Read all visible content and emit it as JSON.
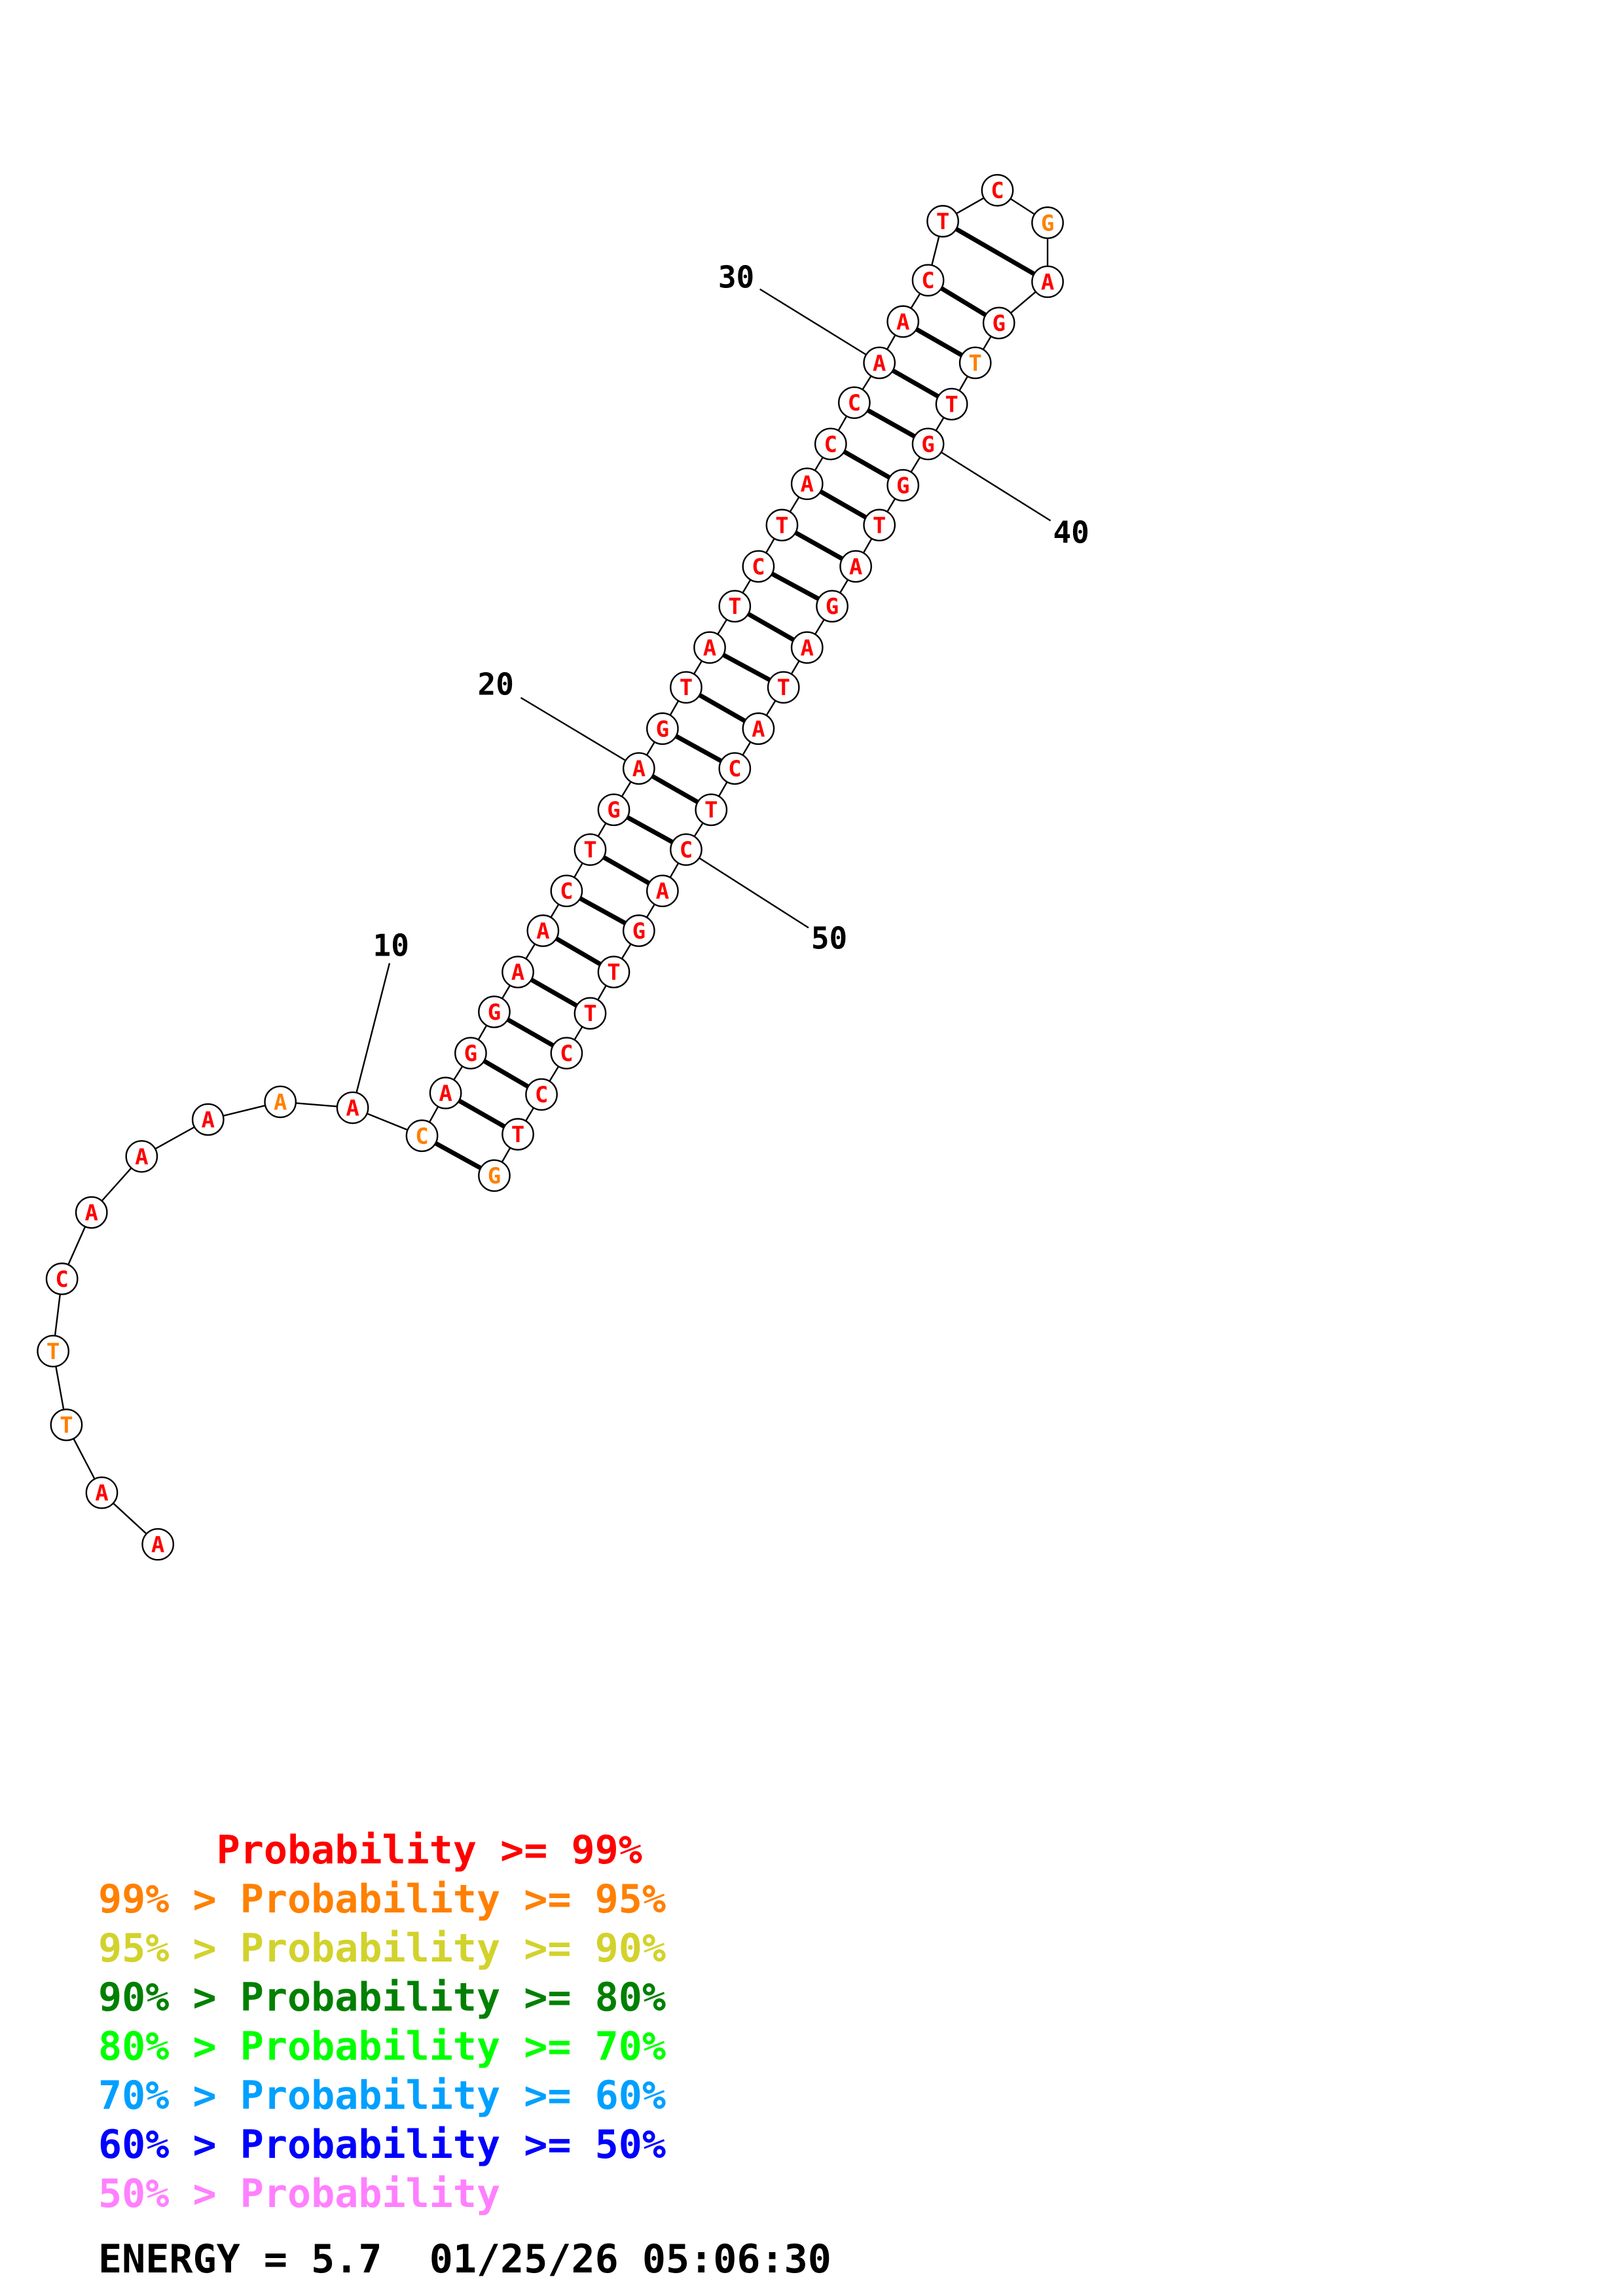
{
  "sequence": [
    "A",
    "A",
    "T",
    "T",
    "C",
    "A",
    "A",
    "A",
    "A",
    "A",
    "C",
    "A",
    "G",
    "G",
    "A",
    "A",
    "C",
    "T",
    "G",
    "A",
    "G",
    "T",
    "A",
    "T",
    "C",
    "T",
    "A",
    "C",
    "C",
    "A",
    "A",
    "C",
    "T",
    "C",
    "G",
    "A",
    "G",
    "T",
    "T",
    "G",
    "G",
    "T",
    "A",
    "G",
    "A",
    "T",
    "A",
    "C",
    "T",
    "C",
    "A",
    "G",
    "T",
    "T",
    "C",
    "C",
    "T",
    "G"
  ],
  "nucleotide_colors": {
    "red": "#ff0000",
    "orange": "#ff8000"
  },
  "orange_positions": [
    3,
    4,
    9,
    11,
    35,
    38,
    58
  ],
  "base_pairs": [
    [
      11,
      58
    ],
    [
      12,
      57
    ],
    [
      13,
      56
    ],
    [
      14,
      55
    ],
    [
      15,
      54
    ],
    [
      16,
      53
    ],
    [
      17,
      52
    ],
    [
      18,
      51
    ],
    [
      19,
      50
    ],
    [
      20,
      49
    ],
    [
      21,
      48
    ],
    [
      22,
      47
    ],
    [
      23,
      46
    ],
    [
      24,
      45
    ],
    [
      25,
      44
    ],
    [
      26,
      43
    ],
    [
      27,
      42
    ],
    [
      28,
      41
    ],
    [
      29,
      40
    ],
    [
      30,
      39
    ],
    [
      31,
      38
    ],
    [
      32,
      37
    ],
    [
      33,
      36
    ]
  ],
  "position_labels": [
    {
      "text": "10",
      "index": 10
    },
    {
      "text": "20",
      "index": 20
    },
    {
      "text": "30",
      "index": 30
    },
    {
      "text": "40",
      "index": 40
    },
    {
      "text": "50",
      "index": 50
    }
  ],
  "legend": [
    {
      "text": "     Probability >= 99%",
      "color": "#ff0000"
    },
    {
      "text": "99% > Probability >= 95%",
      "color": "#ff8000"
    },
    {
      "text": "95% > Probability >= 90%",
      "color": "#d2d22c"
    },
    {
      "text": "90% > Probability >= 80%",
      "color": "#008000"
    },
    {
      "text": "80% > Probability >= 70%",
      "color": "#00ff00"
    },
    {
      "text": "70% > Probability >= 60%",
      "color": "#00a0ff"
    },
    {
      "text": "60% > Probability >= 50%",
      "color": "#0000ff"
    },
    {
      "text": "50% > Probability",
      "color": "#ff80ff"
    }
  ],
  "footer": "ENERGY = 5.7  01/25/26 05:06:30"
}
